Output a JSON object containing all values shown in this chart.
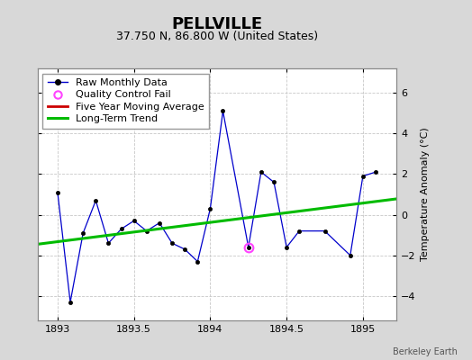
{
  "title": "PELLVILLE",
  "subtitle": "37.750 N, 86.800 W (United States)",
  "ylabel": "Temperature Anomaly (°C)",
  "watermark": "Berkeley Earth",
  "bg_color": "#d8d8d8",
  "plot_bg_color": "#ffffff",
  "xlim": [
    1892.87,
    1895.22
  ],
  "ylim": [
    -5.2,
    7.2
  ],
  "yticks": [
    -4,
    -2,
    0,
    2,
    4,
    6
  ],
  "xticks": [
    1893,
    1893.5,
    1894,
    1894.5,
    1895
  ],
  "raw_x": [
    1893.0,
    1893.083,
    1893.167,
    1893.25,
    1893.333,
    1893.417,
    1893.5,
    1893.583,
    1893.667,
    1893.75,
    1893.833,
    1893.917,
    1894.0,
    1894.083,
    1894.25,
    1894.333,
    1894.417,
    1894.5,
    1894.583,
    1894.75,
    1894.917,
    1895.0,
    1895.083
  ],
  "raw_y": [
    1.1,
    -4.3,
    -0.9,
    0.7,
    -1.4,
    -0.7,
    -0.3,
    -0.8,
    -0.4,
    -1.4,
    -1.7,
    -2.3,
    0.3,
    5.1,
    -1.6,
    2.1,
    1.6,
    -1.6,
    -0.8,
    -0.8,
    -2.0,
    1.9,
    2.1
  ],
  "qc_fail_x": [
    1894.25
  ],
  "qc_fail_y": [
    -1.6
  ],
  "trend_x": [
    1892.87,
    1895.22
  ],
  "trend_y": [
    -1.45,
    0.78
  ],
  "line_color": "#0000cc",
  "marker_color": "#000000",
  "trend_color": "#00bb00",
  "qc_color": "#ff44ff",
  "ma_color": "#cc0000",
  "grid_color": "#c8c8c8",
  "title_fontsize": 13,
  "subtitle_fontsize": 9,
  "tick_fontsize": 8,
  "legend_fontsize": 8
}
